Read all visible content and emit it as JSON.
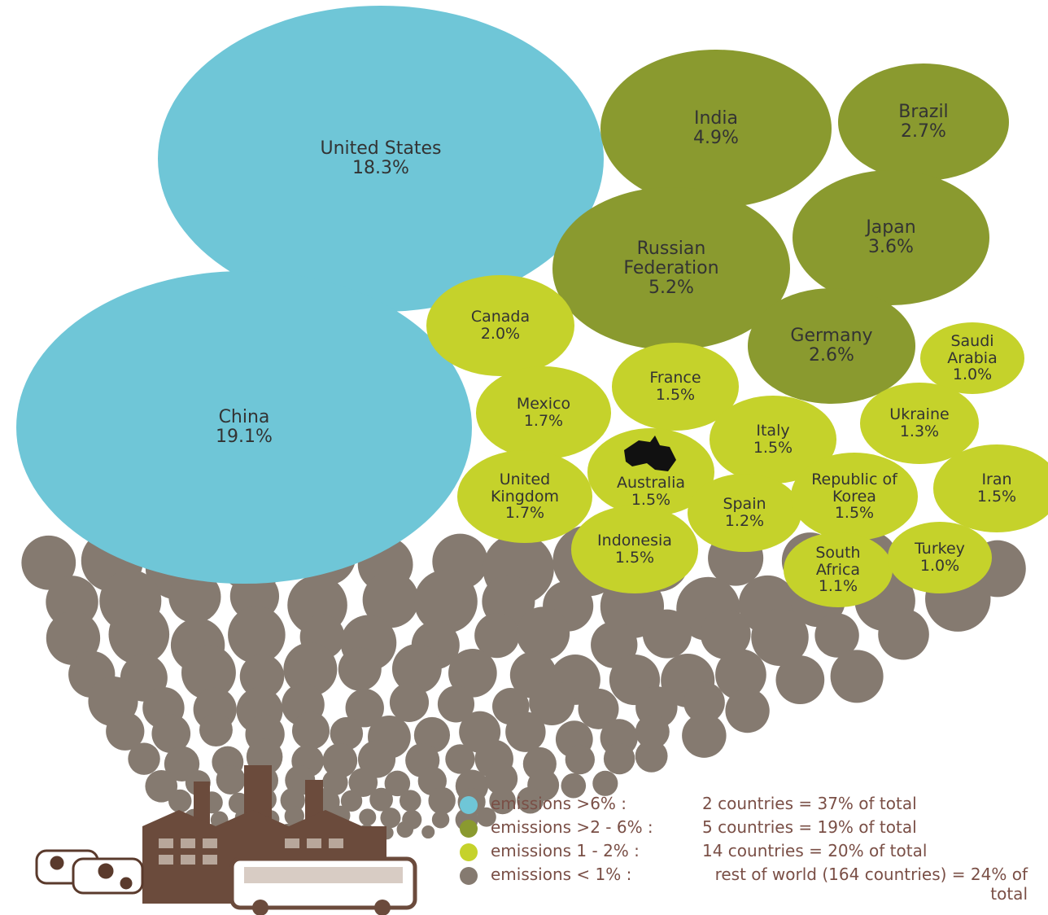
{
  "chart_data": {
    "type": "bubble",
    "series": [
      {
        "name": "emissions >6% :",
        "note": "2 countries = 37% of total",
        "color": "#6fc6d7",
        "categories": [
          "United States",
          "China"
        ],
        "values": [
          18.3,
          19.1
        ],
        "value_labels": [
          "18.3%",
          "19.1%"
        ]
      },
      {
        "name": "emissions >2 - 6% :",
        "note": "5 countries = 19% of total",
        "color": "#8a9a2f",
        "categories": [
          "India",
          "Brazil",
          "Russian Federation",
          "Japan",
          "Germany"
        ],
        "values": [
          4.9,
          2.7,
          5.2,
          3.6,
          2.6
        ],
        "value_labels": [
          "4.9%",
          "2.7%",
          "5.2%",
          "3.6%",
          "2.6%"
        ]
      },
      {
        "name": "emissions 1 - 2% :",
        "note": "14 countries = 20% of total",
        "color": "#c5d22b",
        "categories": [
          "Canada",
          "Saudi Arabia",
          "France",
          "Mexico",
          "Italy",
          "Ukraine",
          "Australia",
          "United Kingdom",
          "Spain",
          "Republic of Korea",
          "Iran",
          "Indonesia",
          "South Africa",
          "Turkey"
        ],
        "values": [
          2.0,
          1.0,
          1.5,
          1.7,
          1.5,
          1.3,
          1.5,
          1.7,
          1.2,
          1.5,
          1.5,
          1.5,
          1.1,
          1.0
        ],
        "value_labels": [
          "2.0%",
          "1.0%",
          "1.5%",
          "1.7%",
          "1.5%",
          "1.3%",
          "1.5%",
          "1.7%",
          "1.2%",
          "1.5%",
          "1.5%",
          "1.5%",
          "1.1%",
          "1.0%"
        ]
      },
      {
        "name": "emissions < 1% :",
        "note": "rest of world (164 countries) = 24% of total",
        "color": "#857a70"
      }
    ]
  }
}
